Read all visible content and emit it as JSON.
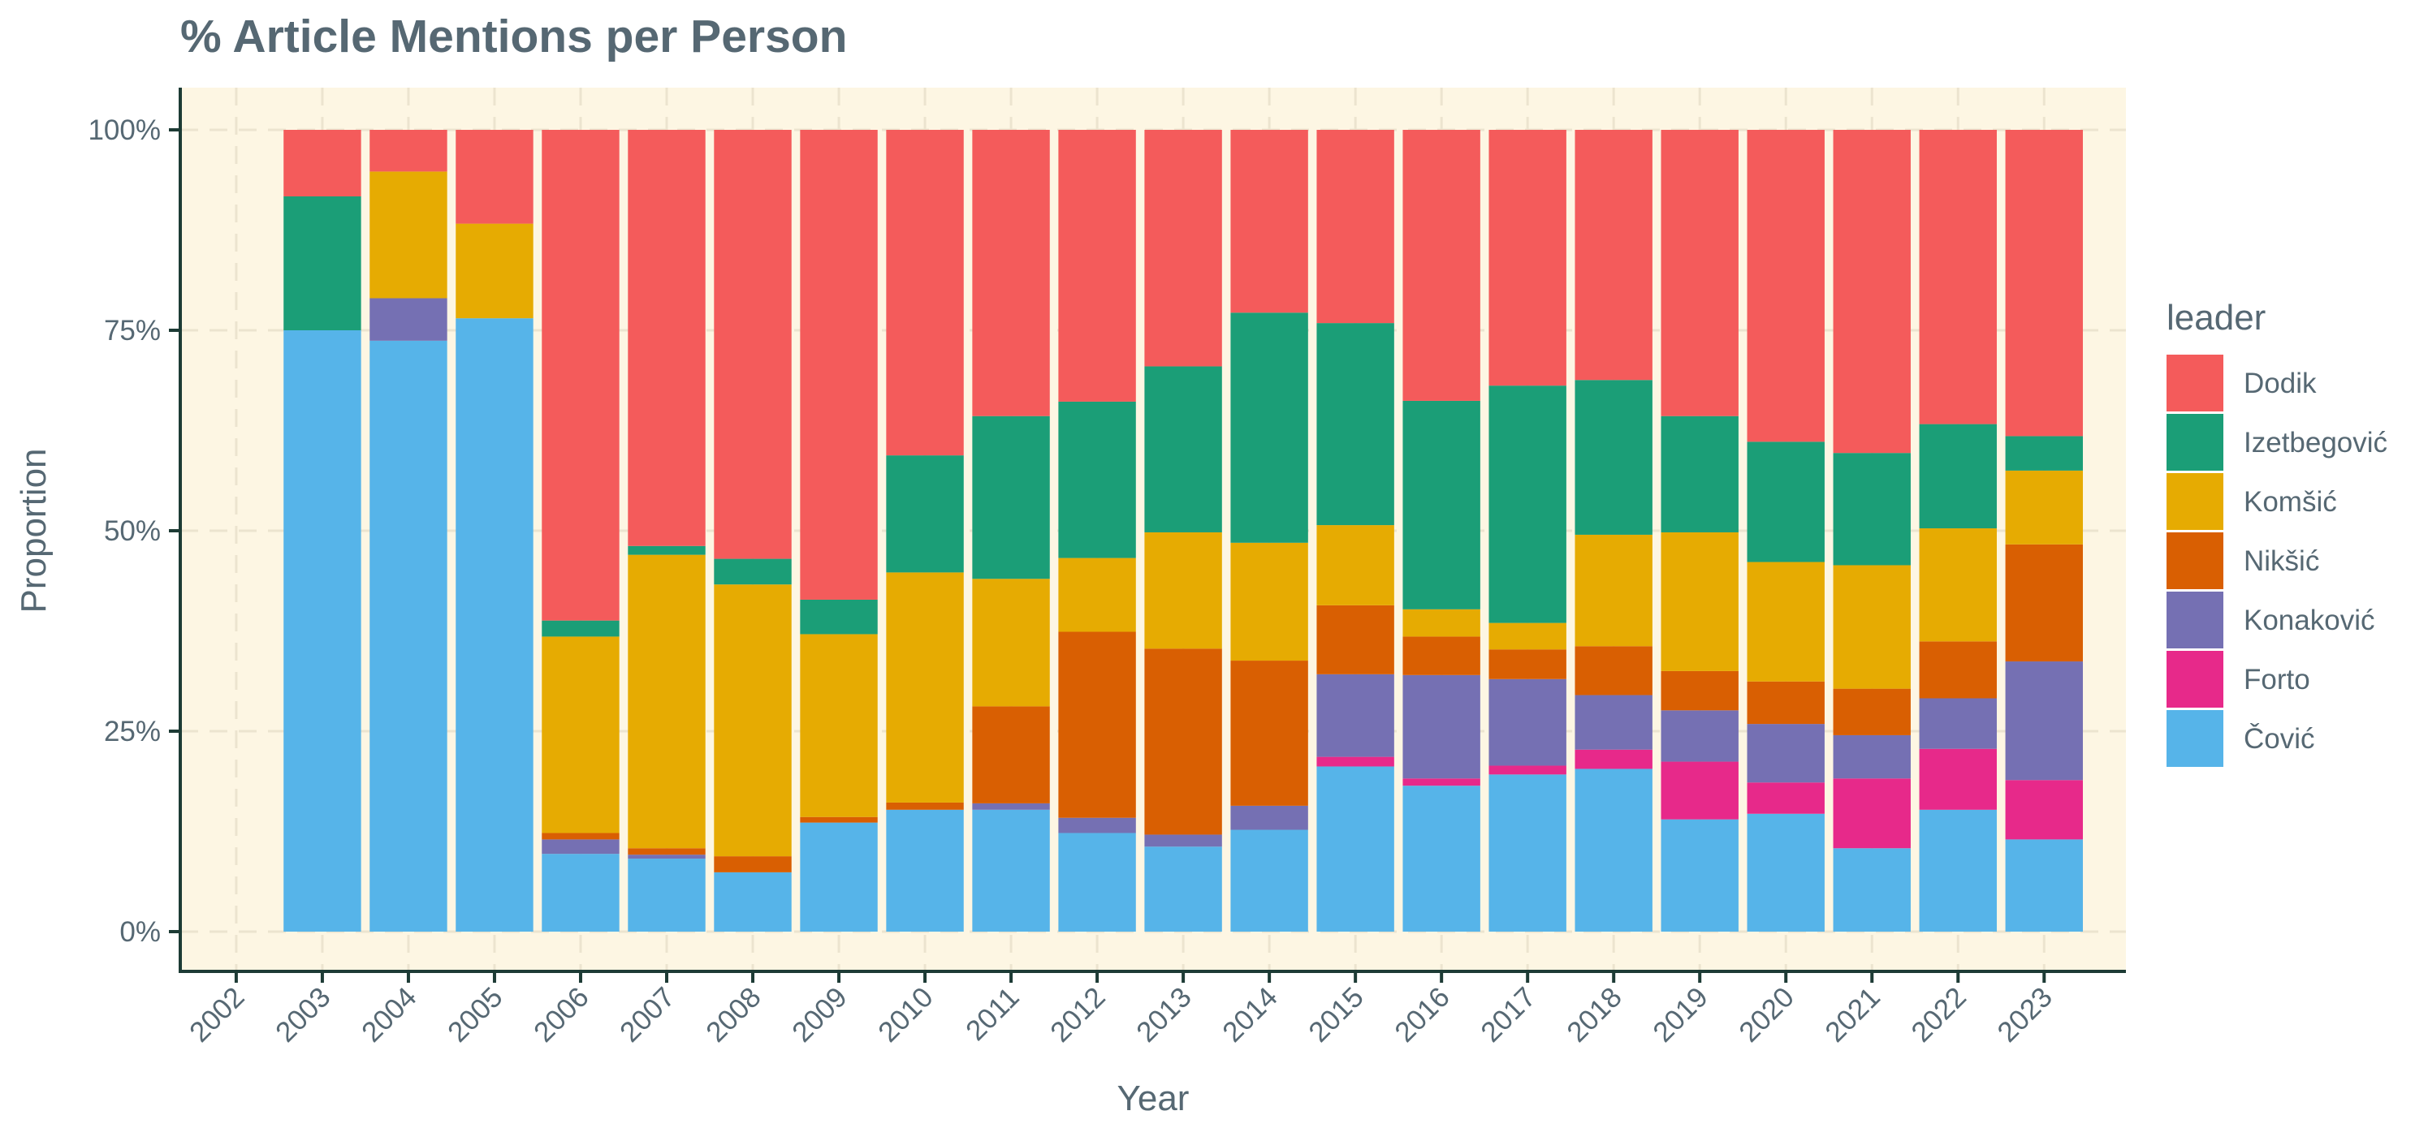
{
  "chart_data": {
    "type": "bar",
    "stacked": true,
    "title": "% Article Mentions per Person",
    "xlabel": "Year",
    "ylabel": "Proportion",
    "ylim": [
      0,
      1
    ],
    "yticks": [
      "0%",
      "25%",
      "50%",
      "75%",
      "100%"
    ],
    "categories": [
      "2002",
      "2003",
      "2004",
      "2005",
      "2006",
      "2007",
      "2008",
      "2009",
      "2010",
      "2011",
      "2012",
      "2013",
      "2014",
      "2015",
      "2016",
      "2017",
      "2018",
      "2019",
      "2020",
      "2021",
      "2022",
      "2023"
    ],
    "legend_title": "leader",
    "legend_position": "right",
    "grid": true,
    "background_color": "#FDF6E3",
    "series": [
      {
        "name": "Čović",
        "color": "#56B4E9",
        "values": [
          0,
          0.75,
          0.737,
          0.765,
          0.097,
          0.091,
          0.074,
          0.136,
          0.152,
          0.152,
          0.123,
          0.106,
          0.127,
          0.206,
          0.182,
          0.196,
          0.203,
          0.14,
          0.147,
          0.104,
          0.152,
          0.115
        ]
      },
      {
        "name": "Forto",
        "color": "#E7298A",
        "values": [
          0,
          0,
          0,
          0,
          0,
          0,
          0,
          0,
          0,
          0,
          0,
          0,
          0,
          0.012,
          0.009,
          0.011,
          0.024,
          0.072,
          0.039,
          0.087,
          0.076,
          0.074
        ]
      },
      {
        "name": "Konaković",
        "color": "#7570B3",
        "values": [
          0,
          0,
          0.053,
          0,
          0.018,
          0.005,
          0,
          0,
          0,
          0.008,
          0.019,
          0.015,
          0.03,
          0.103,
          0.129,
          0.108,
          0.068,
          0.064,
          0.073,
          0.054,
          0.063,
          0.148
        ]
      },
      {
        "name": "Nikšić",
        "color": "#D95F02",
        "values": [
          0,
          0,
          0,
          0,
          0.008,
          0.008,
          0.02,
          0.007,
          0.009,
          0.121,
          0.232,
          0.232,
          0.181,
          0.086,
          0.048,
          0.037,
          0.061,
          0.049,
          0.053,
          0.058,
          0.071,
          0.146
        ]
      },
      {
        "name": "Komšić",
        "color": "#E6AB02",
        "values": [
          0,
          0,
          0.158,
          0.118,
          0.245,
          0.366,
          0.339,
          0.228,
          0.287,
          0.159,
          0.092,
          0.145,
          0.147,
          0.1,
          0.034,
          0.033,
          0.139,
          0.173,
          0.149,
          0.154,
          0.141,
          0.092
        ]
      },
      {
        "name": "Izetbegović",
        "color": "#1B9E77",
        "values": [
          0,
          0.167,
          0,
          0,
          0.02,
          0.011,
          0.032,
          0.043,
          0.146,
          0.203,
          0.195,
          0.207,
          0.287,
          0.252,
          0.26,
          0.296,
          0.193,
          0.145,
          0.15,
          0.14,
          0.13,
          0.043
        ]
      },
      {
        "name": "Dodik",
        "color": "#F45B5B",
        "values": [
          0,
          0.083,
          0.052,
          0.117,
          0.612,
          0.519,
          0.535,
          0.586,
          0.406,
          0.357,
          0.339,
          0.295,
          0.228,
          0.241,
          0.338,
          0.319,
          0.312,
          0.357,
          0.389,
          0.403,
          0.367,
          0.382
        ]
      }
    ],
    "legend_order": [
      "Dodik",
      "Izetbegović",
      "Komšić",
      "Nikšić",
      "Konaković",
      "Forto",
      "Čović"
    ]
  }
}
